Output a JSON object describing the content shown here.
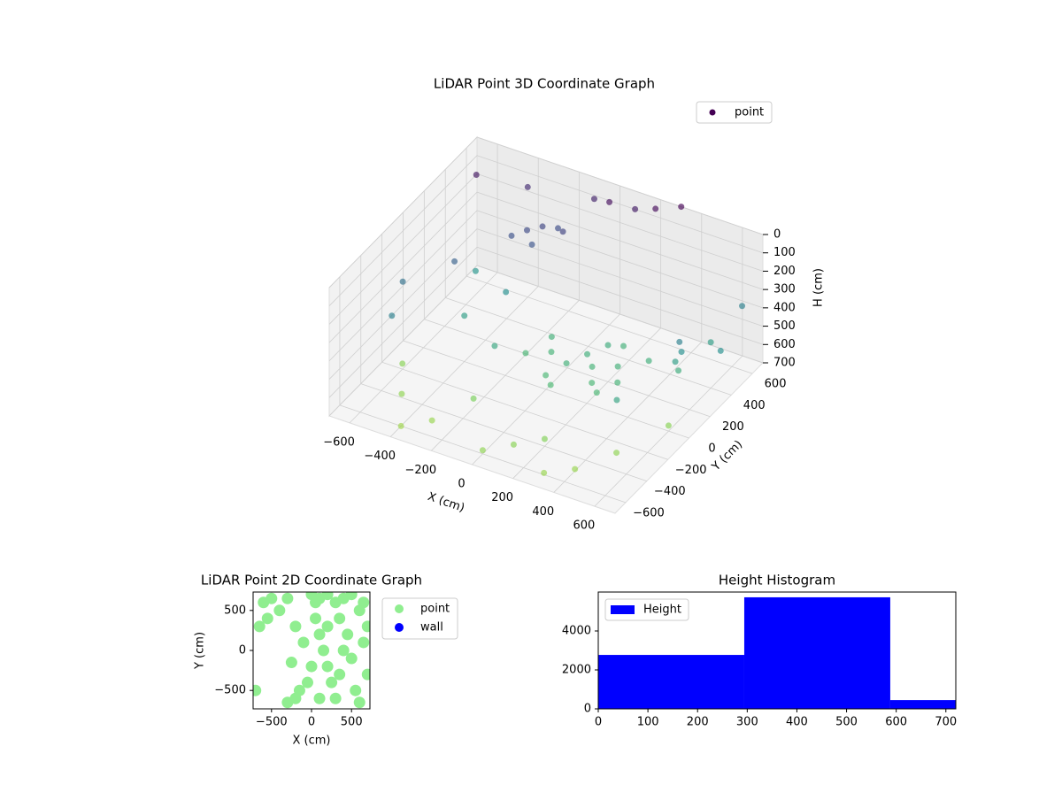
{
  "chart_data": [
    {
      "type": "scatter3d",
      "title": "LiDAR Point 3D Coordinate Graph",
      "xlabel": "X (cm)",
      "ylabel": "Y (cm)",
      "zlabel": "H (cm)",
      "xlim": [
        -700,
        700
      ],
      "ylim": [
        -700,
        700
      ],
      "zlim": [
        0,
        700
      ],
      "zinverted": true,
      "xticks": [
        {
          "value": -600,
          "label": "−600"
        },
        {
          "value": -400,
          "label": "−400"
        },
        {
          "value": -200,
          "label": "−200"
        },
        0,
        200,
        400,
        600
      ],
      "yticks": [
        {
          "value": -600,
          "label": "−600"
        },
        {
          "value": -400,
          "label": "−400"
        },
        {
          "value": -200,
          "label": "−200"
        },
        0,
        200,
        400,
        600
      ],
      "zticks": [
        0,
        100,
        200,
        300,
        400,
        500,
        600,
        700
      ],
      "grid": true,
      "colormap": "viridis",
      "legend": "upper right",
      "series": [
        {
          "name": "point",
          "color": "#440154",
          "x": [
            100,
            200,
            250,
            150,
            300,
            50,
            350,
            200,
            0,
            -100,
            400,
            250,
            100,
            300,
            -50,
            -300,
            -250,
            -200,
            -350,
            -150,
            -250,
            550,
            560,
            540,
            550,
            -500,
            -300,
            0,
            300,
            500,
            -600,
            200,
            -200,
            600,
            400,
            -400,
            100,
            -600,
            -400,
            0,
            200,
            300,
            -650,
            -600,
            -500,
            650,
            700,
            -100,
            100,
            -400,
            -300,
            -200,
            450,
            600,
            -500
          ],
          "y": [
            0,
            50,
            -50,
            100,
            100,
            -100,
            0,
            200,
            50,
            0,
            200,
            250,
            -150,
            -100,
            150,
            400,
            450,
            500,
            350,
            450,
            350,
            200,
            200,
            180,
            190,
            -400,
            -500,
            -600,
            -600,
            -300,
            -200,
            -400,
            -300,
            0,
            -500,
            -600,
            -500,
            500,
            600,
            600,
            650,
            700,
            -100,
            -300,
            100,
            600,
            300,
            650,
            650,
            0,
            200,
            -100,
            -200,
            400,
            300
          ],
          "z": [
            520,
            530,
            540,
            510,
            520,
            545,
            530,
            500,
            525,
            540,
            510,
            515,
            550,
            545,
            520,
            180,
            170,
            190,
            200,
            160,
            210,
            350,
            400,
            450,
            500,
            680,
            690,
            680,
            690,
            680,
            670,
            660,
            650,
            670,
            690,
            700,
            670,
            50,
            100,
            30,
            20,
            0,
            300,
            350,
            250,
            350,
            400,
            80,
            60,
            450,
            400,
            480,
            470,
            450,
            420
          ]
        }
      ]
    },
    {
      "type": "scatter",
      "title": "LiDAR Point 2D Coordinate Graph",
      "xlabel": "X (cm)",
      "ylabel": "Y (cm)",
      "xlim": [
        -730,
        730
      ],
      "ylim": [
        -730,
        730
      ],
      "xticks": [
        {
          "value": -500,
          "label": "−500"
        },
        0,
        500
      ],
      "yticks": [
        {
          "value": -500,
          "label": "−500"
        },
        0,
        500
      ],
      "legend": "outside right",
      "series": [
        {
          "name": "point",
          "color": "#90ee90",
          "x": [
            -700,
            -600,
            -500,
            -400,
            -650,
            -550,
            -300,
            -200,
            -250,
            -150,
            -300,
            0,
            50,
            100,
            200,
            300,
            400,
            500,
            600,
            650,
            700,
            50,
            100,
            150,
            200,
            250,
            300,
            350,
            400,
            450,
            500,
            550,
            600,
            0,
            -50,
            100,
            200,
            350,
            -100,
            650,
            700,
            -200
          ],
          "y": [
            -500,
            600,
            650,
            500,
            300,
            400,
            650,
            300,
            -150,
            -500,
            -650,
            700,
            600,
            650,
            700,
            600,
            650,
            700,
            500,
            600,
            300,
            400,
            200,
            0,
            -200,
            -400,
            -600,
            -300,
            0,
            200,
            -100,
            -500,
            -650,
            -200,
            -400,
            -600,
            300,
            400,
            100,
            100,
            -300,
            -600
          ]
        },
        {
          "name": "wall",
          "color": "#0000ff",
          "x": [],
          "y": []
        }
      ]
    },
    {
      "type": "histogram",
      "title": "Height Histogram",
      "bins": [
        0,
        294,
        588,
        882
      ],
      "values": [
        2770,
        5730,
        450
      ],
      "xlim": [
        0,
        720
      ],
      "ylim": [
        0,
        6000
      ],
      "xticks": [
        0,
        100,
        200,
        300,
        400,
        500,
        600,
        700
      ],
      "yticks": [
        0,
        2000,
        4000
      ],
      "legend": "upper left",
      "series_name": "Height",
      "color": "#0000ff"
    }
  ]
}
